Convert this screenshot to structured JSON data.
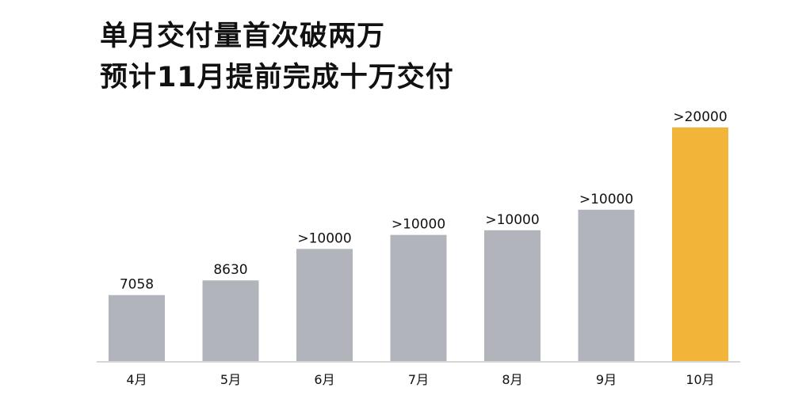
{
  "title_lines": [
    "单月交付量首次破两万",
    "预计11月提前完成十万交付"
  ],
  "chart_data": {
    "type": "bar",
    "categories": [
      "4月",
      "5月",
      "6月",
      "7月",
      "8月",
      "9月",
      "10月"
    ],
    "values": [
      7058,
      8630,
      12000,
      13500,
      14000,
      16200,
      25000
    ],
    "data_labels": [
      "7058",
      "8630",
      ">10000",
      ">10000",
      ">10000",
      ">10000",
      ">20000"
    ],
    "colors": [
      "#b1b4bb",
      "#b1b4bb",
      "#b1b4bb",
      "#b1b4bb",
      "#b1b4bb",
      "#b1b4bb",
      "#f3b43a"
    ],
    "baseline_color": "#d6d6d6",
    "ylim": [
      0,
      25000
    ],
    "grid": false,
    "legend": "none"
  }
}
